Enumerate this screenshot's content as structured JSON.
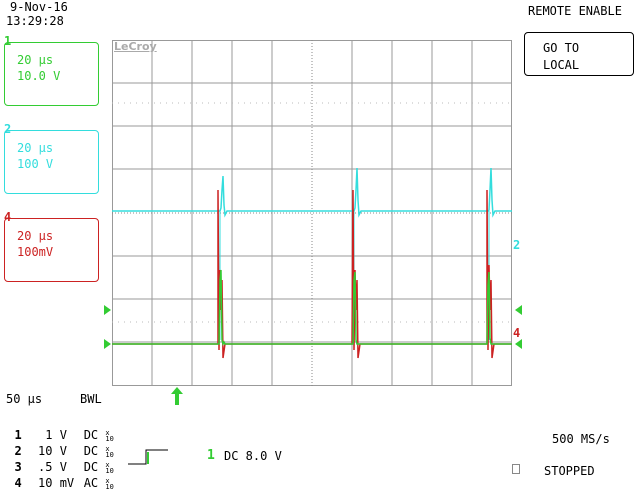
{
  "header": {
    "date": "9-Nov-16",
    "time": "13:29:28",
    "remote_status": "REMOTE ENABLE",
    "go_local_line1": "GO TO",
    "go_local_line2": "LOCAL"
  },
  "logo": "LeCroy",
  "channels": [
    {
      "id": "1",
      "timebase": "20 μs",
      "volts": "10.0 V",
      "color": "#33cc33"
    },
    {
      "id": "2",
      "timebase": "20 μs",
      "volts": "100 V",
      "color": "#33dddd"
    },
    {
      "id": "4",
      "timebase": "20 μs",
      "volts": "100mV",
      "color": "#cc2222"
    }
  ],
  "markers": {
    "ch2_right": "2",
    "ch4_right": "4"
  },
  "footer": {
    "timebase": "50 μs",
    "bwl": "BWL",
    "rows": [
      {
        "ch": "1",
        "volts": "1",
        "unit": "V",
        "coupling": "DC"
      },
      {
        "ch": "2",
        "volts": "10",
        "unit": "V",
        "coupling": "DC"
      },
      {
        "ch": "3",
        "volts": ".5",
        "unit": "V",
        "coupling": "DC"
      },
      {
        "ch": "4",
        "volts": "10",
        "unit": "mV",
        "coupling": "AC"
      }
    ],
    "probe_x": "x",
    "probe_10": "10",
    "trigger_channel": "1",
    "trigger_info": "DC 8.0 V",
    "sample_rate": "500 MS/s",
    "state": "STOPPED"
  },
  "colors": {
    "ch1": "#33cc33",
    "ch2": "#33dddd",
    "ch4": "#cc2222",
    "grid": "#999999"
  }
}
